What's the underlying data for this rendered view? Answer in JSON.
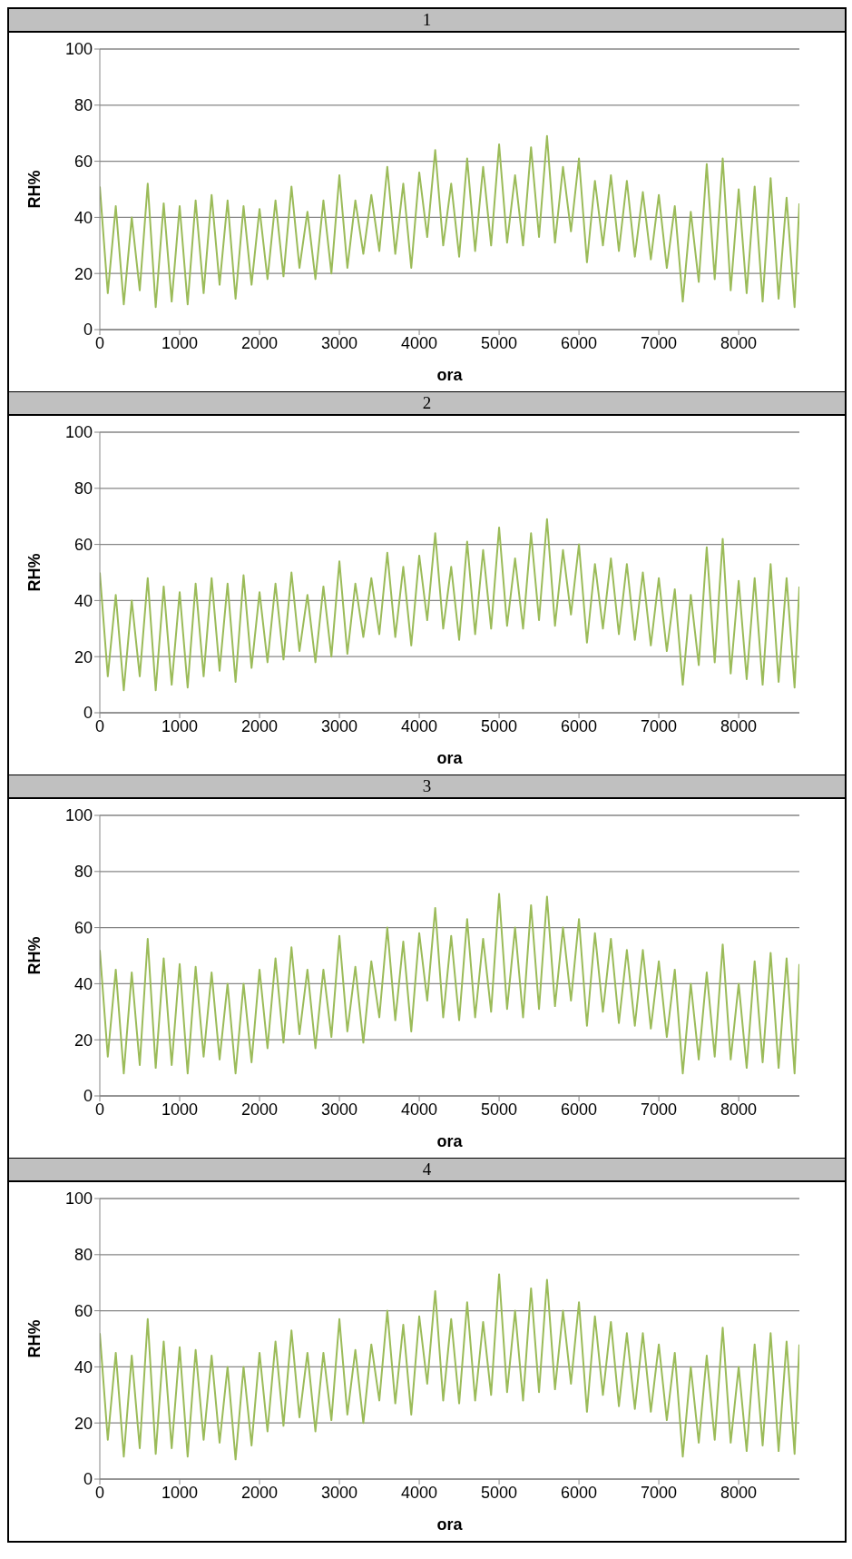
{
  "chart_data": [
    {
      "type": "line",
      "title": "1",
      "xlabel": "ora",
      "ylabel": "RH%",
      "color": "#9bbb59",
      "xlim": [
        0,
        8760
      ],
      "xticks": [
        0,
        1000,
        2000,
        3000,
        4000,
        5000,
        6000,
        7000,
        8000
      ],
      "ylim": [
        0,
        100
      ],
      "yticks": [
        0,
        20,
        40,
        60,
        80,
        100
      ],
      "grid": "y",
      "x": [
        0,
        100,
        200,
        300,
        400,
        500,
        600,
        700,
        800,
        900,
        1000,
        1100,
        1200,
        1300,
        1400,
        1500,
        1600,
        1700,
        1800,
        1900,
        2000,
        2100,
        2200,
        2300,
        2400,
        2500,
        2600,
        2700,
        2800,
        2900,
        3000,
        3100,
        3200,
        3300,
        3400,
        3500,
        3600,
        3700,
        3800,
        3900,
        4000,
        4100,
        4200,
        4300,
        4400,
        4500,
        4600,
        4700,
        4800,
        4900,
        5000,
        5100,
        5200,
        5300,
        5400,
        5500,
        5600,
        5700,
        5800,
        5900,
        6000,
        6100,
        6200,
        6300,
        6400,
        6500,
        6600,
        6700,
        6800,
        6900,
        7000,
        7100,
        7200,
        7300,
        7400,
        7500,
        7600,
        7700,
        7800,
        7900,
        8000,
        8100,
        8200,
        8300,
        8400,
        8500,
        8600,
        8700,
        8760
      ],
      "values": [
        51,
        13,
        44,
        9,
        40,
        14,
        52,
        8,
        45,
        10,
        44,
        9,
        46,
        13,
        48,
        16,
        46,
        11,
        44,
        16,
        43,
        18,
        46,
        19,
        51,
        22,
        42,
        18,
        46,
        20,
        55,
        22,
        46,
        27,
        48,
        28,
        58,
        27,
        52,
        22,
        56,
        33,
        64,
        30,
        52,
        26,
        61,
        28,
        58,
        30,
        66,
        31,
        55,
        30,
        65,
        33,
        69,
        31,
        58,
        35,
        61,
        24,
        53,
        30,
        55,
        28,
        53,
        26,
        49,
        25,
        48,
        22,
        44,
        10,
        42,
        17,
        59,
        18,
        61,
        14,
        50,
        13,
        51,
        10,
        54,
        11,
        47,
        8,
        45
      ]
    },
    {
      "type": "line",
      "title": "2",
      "xlabel": "ora",
      "ylabel": "RH%",
      "color": "#9bbb59",
      "xlim": [
        0,
        8760
      ],
      "xticks": [
        0,
        1000,
        2000,
        3000,
        4000,
        5000,
        6000,
        7000,
        8000
      ],
      "ylim": [
        0,
        100
      ],
      "yticks": [
        0,
        20,
        40,
        60,
        80,
        100
      ],
      "grid": "y",
      "x": [
        0,
        100,
        200,
        300,
        400,
        500,
        600,
        700,
        800,
        900,
        1000,
        1100,
        1200,
        1300,
        1400,
        1500,
        1600,
        1700,
        1800,
        1900,
        2000,
        2100,
        2200,
        2300,
        2400,
        2500,
        2600,
        2700,
        2800,
        2900,
        3000,
        3100,
        3200,
        3300,
        3400,
        3500,
        3600,
        3700,
        3800,
        3900,
        4000,
        4100,
        4200,
        4300,
        4400,
        4500,
        4600,
        4700,
        4800,
        4900,
        5000,
        5100,
        5200,
        5300,
        5400,
        5500,
        5600,
        5700,
        5800,
        5900,
        6000,
        6100,
        6200,
        6300,
        6400,
        6500,
        6600,
        6700,
        6800,
        6900,
        7000,
        7100,
        7200,
        7300,
        7400,
        7500,
        7600,
        7700,
        7800,
        7900,
        8000,
        8100,
        8200,
        8300,
        8400,
        8500,
        8600,
        8700,
        8760
      ],
      "values": [
        50,
        13,
        42,
        8,
        40,
        13,
        48,
        8,
        45,
        10,
        43,
        9,
        46,
        13,
        48,
        15,
        46,
        11,
        49,
        16,
        43,
        18,
        46,
        19,
        50,
        22,
        42,
        18,
        45,
        20,
        54,
        21,
        46,
        27,
        48,
        28,
        57,
        27,
        52,
        24,
        56,
        33,
        64,
        30,
        52,
        26,
        61,
        28,
        58,
        30,
        66,
        31,
        55,
        30,
        64,
        33,
        69,
        31,
        58,
        35,
        60,
        25,
        53,
        30,
        55,
        28,
        53,
        26,
        50,
        24,
        48,
        22,
        44,
        10,
        42,
        17,
        59,
        18,
        62,
        14,
        47,
        12,
        48,
        10,
        53,
        11,
        48,
        9,
        45
      ]
    },
    {
      "type": "line",
      "title": "3",
      "xlabel": "ora",
      "ylabel": "RH%",
      "color": "#9bbb59",
      "xlim": [
        0,
        8760
      ],
      "xticks": [
        0,
        1000,
        2000,
        3000,
        4000,
        5000,
        6000,
        7000,
        8000
      ],
      "ylim": [
        0,
        100
      ],
      "yticks": [
        0,
        20,
        40,
        60,
        80,
        100
      ],
      "grid": "y",
      "x": [
        0,
        100,
        200,
        300,
        400,
        500,
        600,
        700,
        800,
        900,
        1000,
        1100,
        1200,
        1300,
        1400,
        1500,
        1600,
        1700,
        1800,
        1900,
        2000,
        2100,
        2200,
        2300,
        2400,
        2500,
        2600,
        2700,
        2800,
        2900,
        3000,
        3100,
        3200,
        3300,
        3400,
        3500,
        3600,
        3700,
        3800,
        3900,
        4000,
        4100,
        4200,
        4300,
        4400,
        4500,
        4600,
        4700,
        4800,
        4900,
        5000,
        5100,
        5200,
        5300,
        5400,
        5500,
        5600,
        5700,
        5800,
        5900,
        6000,
        6100,
        6200,
        6300,
        6400,
        6500,
        6600,
        6700,
        6800,
        6900,
        7000,
        7100,
        7200,
        7300,
        7400,
        7500,
        7600,
        7700,
        7800,
        7900,
        8000,
        8100,
        8200,
        8300,
        8400,
        8500,
        8600,
        8700,
        8760
      ],
      "values": [
        52,
        14,
        45,
        8,
        44,
        11,
        56,
        10,
        49,
        11,
        47,
        8,
        46,
        14,
        44,
        13,
        40,
        8,
        40,
        12,
        45,
        17,
        49,
        19,
        53,
        22,
        45,
        17,
        45,
        21,
        57,
        23,
        46,
        19,
        48,
        28,
        60,
        27,
        55,
        23,
        58,
        34,
        67,
        28,
        57,
        27,
        63,
        28,
        56,
        30,
        72,
        31,
        60,
        28,
        68,
        31,
        71,
        32,
        60,
        34,
        63,
        25,
        58,
        30,
        56,
        26,
        52,
        25,
        52,
        24,
        48,
        21,
        45,
        8,
        40,
        13,
        44,
        14,
        54,
        13,
        40,
        10,
        48,
        12,
        51,
        10,
        49,
        8,
        47
      ]
    },
    {
      "type": "line",
      "title": "4",
      "xlabel": "ora",
      "ylabel": "RH%",
      "color": "#9bbb59",
      "xlim": [
        0,
        8760
      ],
      "xticks": [
        0,
        1000,
        2000,
        3000,
        4000,
        5000,
        6000,
        7000,
        8000
      ],
      "ylim": [
        0,
        100
      ],
      "yticks": [
        0,
        20,
        40,
        60,
        80,
        100
      ],
      "grid": "y",
      "x": [
        0,
        100,
        200,
        300,
        400,
        500,
        600,
        700,
        800,
        900,
        1000,
        1100,
        1200,
        1300,
        1400,
        1500,
        1600,
        1700,
        1800,
        1900,
        2000,
        2100,
        2200,
        2300,
        2400,
        2500,
        2600,
        2700,
        2800,
        2900,
        3000,
        3100,
        3200,
        3300,
        3400,
        3500,
        3600,
        3700,
        3800,
        3900,
        4000,
        4100,
        4200,
        4300,
        4400,
        4500,
        4600,
        4700,
        4800,
        4900,
        5000,
        5100,
        5200,
        5300,
        5400,
        5500,
        5600,
        5700,
        5800,
        5900,
        6000,
        6100,
        6200,
        6300,
        6400,
        6500,
        6600,
        6700,
        6800,
        6900,
        7000,
        7100,
        7200,
        7300,
        7400,
        7500,
        7600,
        7700,
        7800,
        7900,
        8000,
        8100,
        8200,
        8300,
        8400,
        8500,
        8600,
        8700,
        8760
      ],
      "values": [
        52,
        14,
        45,
        8,
        44,
        11,
        57,
        9,
        49,
        11,
        47,
        8,
        46,
        14,
        44,
        13,
        40,
        7,
        40,
        12,
        45,
        17,
        49,
        19,
        53,
        22,
        45,
        17,
        45,
        21,
        57,
        23,
        46,
        20,
        48,
        28,
        60,
        27,
        55,
        23,
        58,
        34,
        67,
        28,
        57,
        27,
        63,
        28,
        56,
        30,
        73,
        31,
        60,
        28,
        68,
        31,
        71,
        32,
        60,
        34,
        63,
        24,
        58,
        30,
        56,
        26,
        52,
        25,
        52,
        24,
        48,
        21,
        45,
        8,
        40,
        13,
        44,
        14,
        54,
        13,
        40,
        10,
        48,
        12,
        52,
        10,
        49,
        9,
        48
      ]
    }
  ]
}
